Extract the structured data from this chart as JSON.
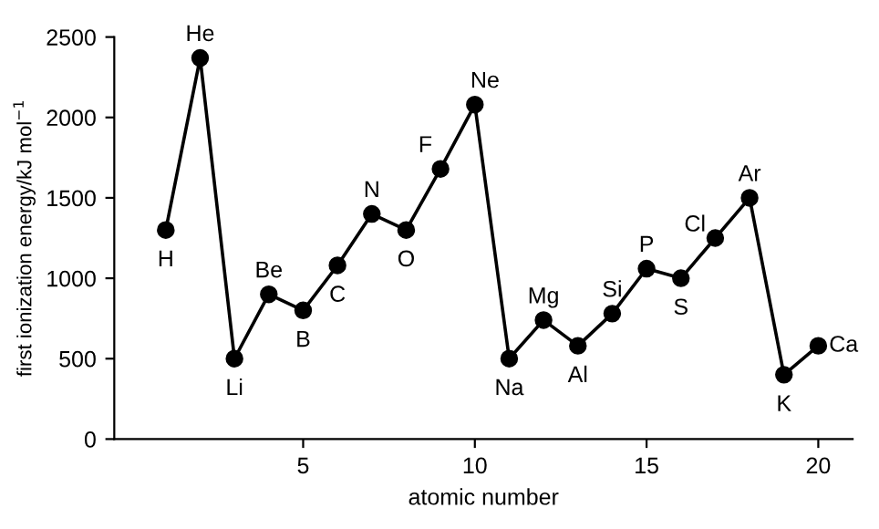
{
  "chart_data": {
    "type": "line",
    "xlabel": "atomic number",
    "ylabel": "first ionization energy/kJ mol$^{−1}$",
    "x": [
      1,
      2,
      3,
      4,
      5,
      6,
      7,
      8,
      9,
      10,
      11,
      12,
      13,
      14,
      15,
      16,
      17,
      18,
      19,
      20
    ],
    "series": [
      {
        "color": "#000000",
        "values": [
          1300,
          2370,
          500,
          900,
          800,
          1080,
          1400,
          1300,
          1680,
          2080,
          500,
          740,
          580,
          780,
          1060,
          1000,
          1250,
          1500,
          400,
          580
        ]
      }
    ],
    "xlim": [
      -0.5,
      21
    ],
    "ylim": [
      0,
      2500
    ],
    "xticks": [
      5,
      10,
      15,
      20
    ],
    "yticks": [
      0,
      500,
      1000,
      1500,
      2000,
      2500
    ],
    "grid": false,
    "marker": "circle",
    "line_style": "solid",
    "annotations": [
      {
        "text": "H",
        "x": 1,
        "y": 1300
      },
      {
        "text": "He",
        "x": 2,
        "y": 2370
      },
      {
        "text": "Li",
        "x": 3,
        "y": 500
      },
      {
        "text": "Be",
        "x": 4,
        "y": 900
      },
      {
        "text": "B",
        "x": 5,
        "y": 800
      },
      {
        "text": "C",
        "x": 6,
        "y": 1080
      },
      {
        "text": "N",
        "x": 7,
        "y": 1400
      },
      {
        "text": "O",
        "x": 8,
        "y": 1300
      },
      {
        "text": "F",
        "x": 9,
        "y": 1680
      },
      {
        "text": "Ne",
        "x": 10,
        "y": 2080
      },
      {
        "text": "Na",
        "x": 11,
        "y": 500
      },
      {
        "text": "Mg",
        "x": 12,
        "y": 740
      },
      {
        "text": "Al",
        "x": 13,
        "y": 580
      },
      {
        "text": "Si",
        "x": 14,
        "y": 780
      },
      {
        "text": "P",
        "x": 15,
        "y": 1060
      },
      {
        "text": "S",
        "x": 16,
        "y": 1000
      },
      {
        "text": "Cl",
        "x": 17,
        "y": 1250
      },
      {
        "text": "Ar",
        "x": 18,
        "y": 1500
      },
      {
        "text": "K",
        "x": 19,
        "y": 400
      },
      {
        "text": "Ca",
        "x": 20,
        "y": 580
      }
    ]
  }
}
